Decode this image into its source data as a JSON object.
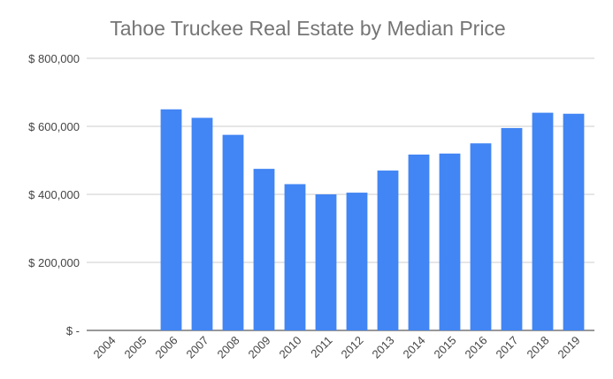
{
  "chart_data": {
    "type": "bar",
    "title": "Tahoe Truckee Real Estate by Median Price",
    "xlabel": "",
    "ylabel": "",
    "categories": [
      "2004",
      "2005",
      "2006",
      "2007",
      "2008",
      "2009",
      "2010",
      "2011",
      "2012",
      "2013",
      "2014",
      "2015",
      "2016",
      "2017",
      "2018",
      "2019"
    ],
    "values": [
      0,
      0,
      650000,
      625000,
      575000,
      475000,
      430000,
      400000,
      405000,
      470000,
      517000,
      520000,
      550000,
      595000,
      640000,
      637000
    ],
    "ylim": [
      0,
      800000
    ],
    "yticks": [
      {
        "value": 0,
        "label": "$ -"
      },
      {
        "value": 200000,
        "label": "$ 200,000"
      },
      {
        "value": 400000,
        "label": "$ 400,000"
      },
      {
        "value": 600000,
        "label": "$ 600,000"
      },
      {
        "value": 800000,
        "label": "$ 800,000"
      }
    ],
    "grid": true,
    "legend": "none",
    "bar_color": "#4285f4"
  }
}
